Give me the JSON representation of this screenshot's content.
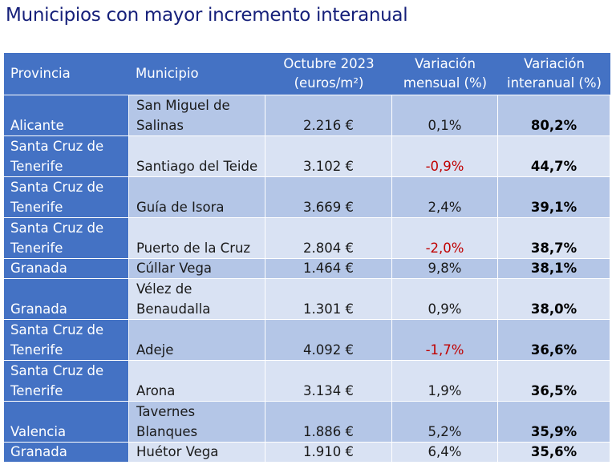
{
  "title": "Municipios con mayor incremento interanual",
  "header": {
    "provincia": "Provincia",
    "municipio": "Municipio",
    "precio_line1": "Octubre 2023",
    "precio_line2": "(euros/m²)",
    "mensual_line1": "Variación",
    "mensual_line2": "mensual (%)",
    "interanual_line1": "Variación",
    "interanual_line2": "interanual (%)"
  },
  "rows": [
    {
      "provincia": "Alicante",
      "municipio": "San Miguel de Salinas",
      "precio": "2.216 €",
      "mensual": "0,1%",
      "interanual": "80,2%"
    },
    {
      "provincia": "Santa Cruz de Tenerife",
      "municipio": "Santiago del Teide",
      "precio": "3.102 €",
      "mensual": "-0,9%",
      "interanual": "44,7%"
    },
    {
      "provincia": "Santa Cruz de Tenerife",
      "municipio": "Guía de Isora",
      "precio": "3.669 €",
      "mensual": "2,4%",
      "interanual": "39,1%"
    },
    {
      "provincia": "Santa Cruz de Tenerife",
      "municipio": "Puerto de la Cruz",
      "precio": "2.804 €",
      "mensual": "-2,0%",
      "interanual": "38,7%"
    },
    {
      "provincia": "Granada",
      "municipio": "Cúllar Vega",
      "precio": "1.464 €",
      "mensual": "9,8%",
      "interanual": "38,1%"
    },
    {
      "provincia": "Granada",
      "municipio": "Vélez de Benaudalla",
      "precio": "1.301 €",
      "mensual": "0,9%",
      "interanual": "38,0%"
    },
    {
      "provincia": "Santa Cruz de Tenerife",
      "municipio": "Adeje",
      "precio": "4.092 €",
      "mensual": "-1,7%",
      "interanual": "36,6%"
    },
    {
      "provincia": "Santa Cruz de Tenerife",
      "municipio": "Arona",
      "precio": "3.134 €",
      "mensual": "1,9%",
      "interanual": "36,5%"
    },
    {
      "provincia": "Valencia",
      "municipio": "Tavernes Blanques",
      "precio": "1.886 €",
      "mensual": "5,2%",
      "interanual": "35,9%"
    },
    {
      "provincia": "Granada",
      "municipio": "Huétor Vega",
      "precio": "1.910 €",
      "mensual": "6,4%",
      "interanual": "35,6%"
    }
  ],
  "colors": {
    "header_bg": "#4472c4",
    "row_dark": "#b4c6e7",
    "row_light": "#d9e2f3",
    "negative": "#c00000",
    "title": "#16207a"
  }
}
